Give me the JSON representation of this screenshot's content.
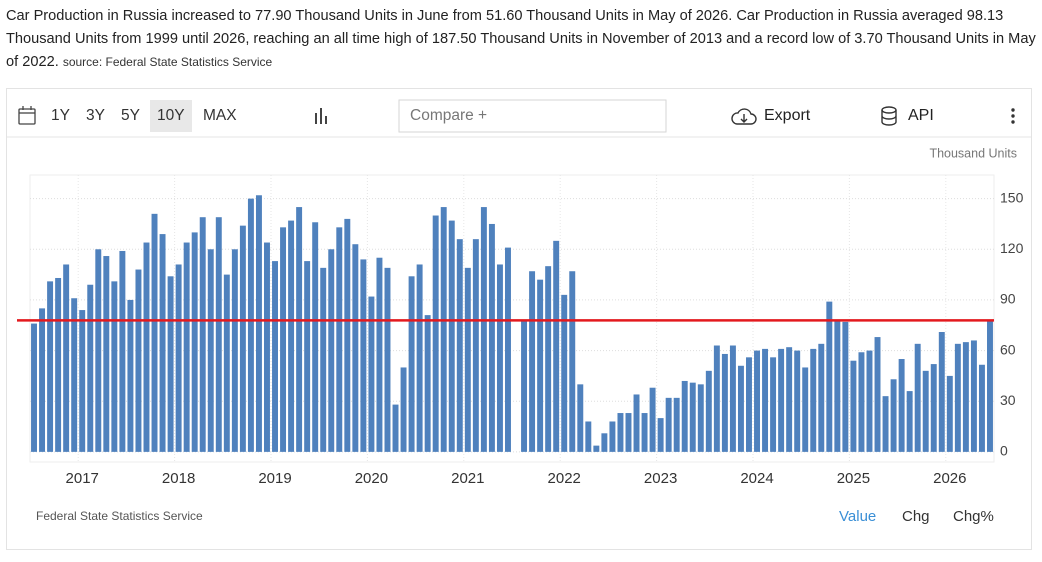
{
  "header": {
    "description": "Car Production in Russia increased to 77.90 Thousand Units in June from 51.60 Thousand Units in May of 2026. Car Production in Russia averaged 98.13 Thousand Units from 1999 until 2026, reaching an all time high of 187.50 Thousand Units in November of 2013 and a record low of 3.70 Thousand Units in May of 2022.",
    "source": "source: Federal State Statistics Service"
  },
  "toolbar": {
    "ranges": [
      "1Y",
      "3Y",
      "5Y",
      "10Y",
      "MAX"
    ],
    "active_range": 3,
    "compare": "Compare +",
    "export": "Export",
    "api": "API"
  },
  "chart_data": {
    "type": "bar",
    "y_label": "Thousand Units",
    "color": "#4f81bd",
    "last_value_line_color": "#e3191e",
    "grid": true,
    "categories": [
      null,
      null,
      null,
      null,
      null,
      null,
      "2017",
      null,
      null,
      null,
      null,
      null,
      null,
      null,
      null,
      null,
      null,
      null,
      "2018",
      null,
      null,
      null,
      null,
      null,
      null,
      null,
      null,
      null,
      null,
      null,
      "2019",
      null,
      null,
      null,
      null,
      null,
      null,
      null,
      null,
      null,
      null,
      null,
      "2020",
      null,
      null,
      null,
      null,
      null,
      null,
      null,
      null,
      null,
      null,
      null,
      "2021",
      null,
      null,
      null,
      null,
      null,
      null,
      null,
      null,
      null,
      null,
      null,
      "2022",
      null,
      null,
      null,
      null,
      null,
      null,
      null,
      null,
      null,
      null,
      null,
      "2023",
      null,
      null,
      null,
      null,
      null,
      null,
      null,
      null,
      null,
      null,
      null,
      "2024",
      null,
      null,
      null,
      null,
      null,
      null,
      null,
      null,
      null,
      null,
      null,
      "2025",
      null,
      null,
      null,
      null,
      null,
      null,
      null,
      null,
      null,
      null,
      null,
      "2026",
      null,
      null,
      null,
      null,
      null
    ],
    "values": [
      76,
      85,
      101,
      103,
      111,
      91,
      84,
      99,
      120,
      116,
      101,
      119,
      90,
      108,
      124,
      141,
      129,
      104,
      111,
      124,
      130,
      139,
      120,
      139,
      105,
      120,
      134,
      150,
      152,
      124,
      113,
      133,
      137,
      145,
      113,
      136,
      109,
      120,
      133,
      138,
      123,
      114,
      92,
      115,
      109,
      28,
      50,
      104,
      111,
      81,
      140,
      145,
      137,
      126,
      109,
      126,
      145,
      135,
      111,
      121,
      null,
      78,
      107,
      102,
      110,
      125,
      93,
      107,
      40,
      18,
      3.7,
      11,
      18,
      23,
      23,
      34,
      23,
      38,
      20,
      32,
      32,
      42,
      41,
      40,
      48,
      63,
      58,
      63,
      51,
      56,
      60,
      61,
      56,
      61,
      62,
      60,
      50,
      61,
      64,
      89,
      78,
      77,
      54,
      59,
      60,
      68,
      33,
      43,
      55,
      36,
      64,
      48,
      52,
      71,
      45,
      64,
      65,
      66,
      51.6,
      77.9
    ],
    "ylim": [
      -6,
      164
    ],
    "yticks": [
      0,
      30,
      60,
      90,
      120,
      150
    ]
  },
  "footer": {
    "source": "Federal State Statistics Service",
    "tabs": [
      "Value",
      "Chg",
      "Chg%"
    ],
    "active_tab": 0
  }
}
